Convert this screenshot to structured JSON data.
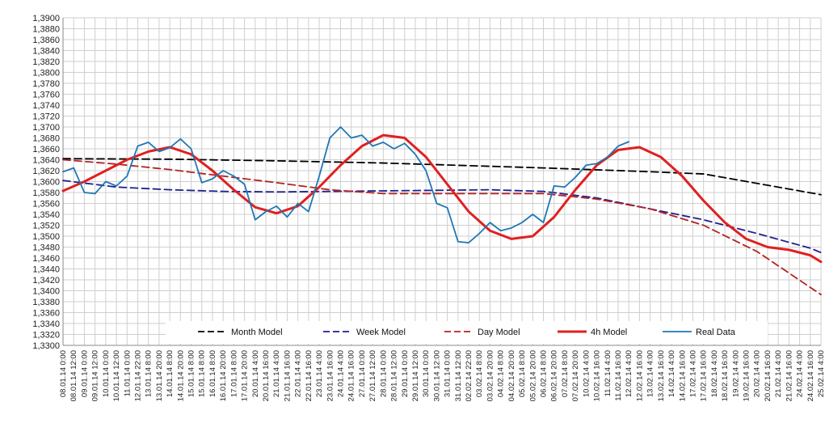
{
  "chart_data": {
    "type": "line",
    "title": "",
    "xlabel": "",
    "ylabel": "",
    "ylim": [
      1.33,
      1.39
    ],
    "y_tick_step": 0.002,
    "grid": true,
    "legend_position": "bottom-inside",
    "x_tick_labels": [
      "08.01.14 0:00",
      "08.01.14 12:00",
      "09.01.14 0:00",
      "09.01.14 12:00",
      "10.01.14 0:00",
      "10.01.14 12:00",
      "11.01.14 0:00",
      "12.01.14 22:00",
      "13.01.14 8:00",
      "13.01.14 20:00",
      "14.01.14 8:00",
      "14.01.14 20:00",
      "15.01.14 8:00",
      "15.01.14 8:00",
      "16.01.14 8:00",
      "16.01.14 20:00",
      "17.01.14 8:00",
      "17.01.14 20:00",
      "20.01.14 4:00",
      "20.01.14 16:00",
      "21.01.14 4:00",
      "21.01.14 16:00",
      "22.01.14 4:00",
      "22.01.14 16:00",
      "23.01.14 4:00",
      "23.01.14 16:00",
      "24.01.14 4:00",
      "24.01.14 16:00",
      "27.01.14 0:00",
      "27.01.14 12:00",
      "28.01.14 0:00",
      "28.01.14 12:00",
      "29.01.14 0:00",
      "29.01.14 12:00",
      "30.01.14 0:00",
      "30.01.14 12:00",
      "31.01.14 0:00",
      "31.01.14 12:00",
      "02.02.14 22:00",
      "03.02.14 8:00",
      "03.02.14 20:00",
      "04.02.14 8:00",
      "04.02.14 20:00",
      "05.02.14 8:00",
      "05.02.14 20:00",
      "06.02.14 8:00",
      "06.02.14 20:00",
      "07.02.14 8:00",
      "07.02.14 20:00",
      "10.02.14 4:00",
      "10.02.14 16:00",
      "11.02.14 4:00",
      "11.02.14 16:00",
      "12.02.14 4:00",
      "12.02.14 16:00",
      "13.02.14 4:00",
      "13.02.14 16:00",
      "14.02.14 4:00",
      "14.02.14 16:00",
      "17.02.14 4:00",
      "17.02.14 16:00",
      "18.02.14 4:00",
      "18.02.14 16:00",
      "19.02.14 4:00",
      "19.02.14 16:00",
      "20.02.14 4:00",
      "20.02.14 16:00",
      "21.02.14 4:00",
      "21.02.14 16:00",
      "24.02.14 4:00",
      "24.02.14 16:00",
      "25.02.14 4:00"
    ],
    "series": [
      {
        "name": "Month Model",
        "color": "#000000",
        "dash": "long-dash",
        "points": [
          [
            0,
            1.3642
          ],
          [
            10,
            1.3641
          ],
          [
            20,
            1.3638
          ],
          [
            30,
            1.3634
          ],
          [
            40,
            1.3628
          ],
          [
            45,
            1.3625
          ],
          [
            55,
            1.3618
          ],
          [
            60,
            1.3614
          ],
          [
            71,
            1.3576
          ]
        ]
      },
      {
        "name": "Week Model",
        "color": "#1f1f8f",
        "dash": "long-dash",
        "points": [
          [
            0,
            1.3602
          ],
          [
            5,
            1.359
          ],
          [
            10,
            1.3585
          ],
          [
            15,
            1.3582
          ],
          [
            20,
            1.3581
          ],
          [
            30,
            1.3583
          ],
          [
            40,
            1.3585
          ],
          [
            45,
            1.3582
          ],
          [
            50,
            1.357
          ],
          [
            55,
            1.355
          ],
          [
            60,
            1.353
          ],
          [
            65,
            1.3505
          ],
          [
            70,
            1.3478
          ],
          [
            71,
            1.347
          ]
        ]
      },
      {
        "name": "Day Model",
        "color": "#b22222",
        "dash": "long-dash",
        "points": [
          [
            0,
            1.364
          ],
          [
            5,
            1.3632
          ],
          [
            10,
            1.3622
          ],
          [
            15,
            1.361
          ],
          [
            20,
            1.3598
          ],
          [
            25,
            1.3585
          ],
          [
            30,
            1.3578
          ],
          [
            40,
            1.3578
          ],
          [
            45,
            1.3578
          ],
          [
            50,
            1.3568
          ],
          [
            55,
            1.355
          ],
          [
            60,
            1.352
          ],
          [
            65,
            1.3472
          ],
          [
            71,
            1.3393
          ]
        ]
      },
      {
        "name": "4h Model",
        "color": "#e02020",
        "dash": "solid",
        "points": [
          [
            0,
            1.3583
          ],
          [
            2,
            1.36
          ],
          [
            4,
            1.362
          ],
          [
            6,
            1.364
          ],
          [
            8,
            1.3655
          ],
          [
            10,
            1.3663
          ],
          [
            12,
            1.365
          ],
          [
            14,
            1.362
          ],
          [
            16,
            1.3585
          ],
          [
            18,
            1.3553
          ],
          [
            20,
            1.3542
          ],
          [
            22,
            1.3555
          ],
          [
            24,
            1.359
          ],
          [
            26,
            1.363
          ],
          [
            28,
            1.3665
          ],
          [
            30,
            1.3685
          ],
          [
            32,
            1.368
          ],
          [
            34,
            1.3645
          ],
          [
            36,
            1.3595
          ],
          [
            38,
            1.3545
          ],
          [
            40,
            1.351
          ],
          [
            42,
            1.3495
          ],
          [
            44,
            1.35
          ],
          [
            46,
            1.3535
          ],
          [
            48,
            1.3585
          ],
          [
            50,
            1.363
          ],
          [
            52,
            1.3658
          ],
          [
            54,
            1.3663
          ],
          [
            56,
            1.3645
          ],
          [
            58,
            1.361
          ],
          [
            60,
            1.3565
          ],
          [
            62,
            1.3525
          ],
          [
            64,
            1.3495
          ],
          [
            66,
            1.348
          ],
          [
            68,
            1.3475
          ],
          [
            70,
            1.3465
          ],
          [
            71,
            1.3453
          ]
        ]
      },
      {
        "name": "Real Data",
        "color": "#1f77b4",
        "dash": "solid",
        "points": [
          [
            0,
            1.3618
          ],
          [
            1,
            1.3625
          ],
          [
            2,
            1.358
          ],
          [
            3,
            1.3578
          ],
          [
            4,
            1.36
          ],
          [
            5,
            1.3592
          ],
          [
            6,
            1.361
          ],
          [
            7,
            1.3665
          ],
          [
            8,
            1.3672
          ],
          [
            9,
            1.3655
          ],
          [
            10,
            1.3662
          ],
          [
            11,
            1.3678
          ],
          [
            12,
            1.366
          ],
          [
            13,
            1.3598
          ],
          [
            14,
            1.3605
          ],
          [
            15,
            1.362
          ],
          [
            16,
            1.361
          ],
          [
            17,
            1.3595
          ],
          [
            18,
            1.353
          ],
          [
            19,
            1.3545
          ],
          [
            20,
            1.3555
          ],
          [
            21,
            1.3535
          ],
          [
            22,
            1.356
          ],
          [
            23,
            1.3545
          ],
          [
            24,
            1.361
          ],
          [
            25,
            1.368
          ],
          [
            26,
            1.37
          ],
          [
            27,
            1.368
          ],
          [
            28,
            1.3685
          ],
          [
            29,
            1.3665
          ],
          [
            30,
            1.3672
          ],
          [
            31,
            1.366
          ],
          [
            32,
            1.367
          ],
          [
            33,
            1.365
          ],
          [
            34,
            1.362
          ],
          [
            35,
            1.356
          ],
          [
            36,
            1.3552
          ],
          [
            37,
            1.349
          ],
          [
            38,
            1.3488
          ],
          [
            39,
            1.3505
          ],
          [
            40,
            1.3525
          ],
          [
            41,
            1.351
          ],
          [
            42,
            1.3515
          ],
          [
            43,
            1.3525
          ],
          [
            44,
            1.354
          ],
          [
            45,
            1.3525
          ],
          [
            46,
            1.3592
          ],
          [
            47,
            1.359
          ],
          [
            48,
            1.3608
          ],
          [
            49,
            1.363
          ],
          [
            50,
            1.3633
          ],
          [
            51,
            1.3645
          ],
          [
            52,
            1.3665
          ],
          [
            53,
            1.3673
          ]
        ]
      }
    ],
    "legend": [
      "Month Model",
      "Week Model",
      "Day Model",
      "4h Model",
      "Real Data"
    ]
  }
}
